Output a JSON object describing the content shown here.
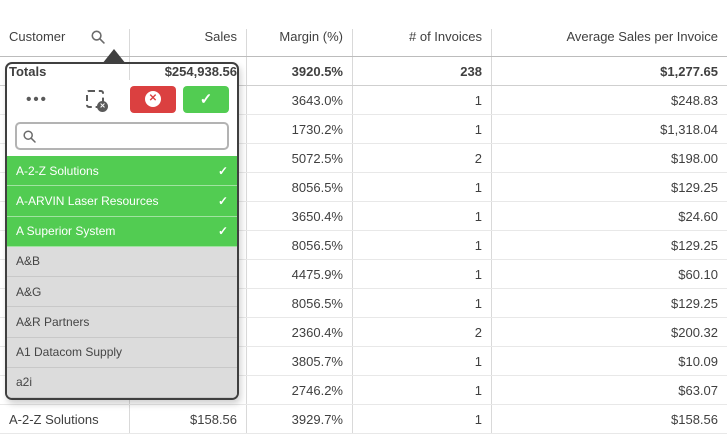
{
  "header": {
    "columns": [
      {
        "label": "Customer"
      },
      {
        "label": "Sales"
      },
      {
        "label": "Margin (%)"
      },
      {
        "label": "# of Invoices"
      },
      {
        "label": "Average Sales per Invoice"
      }
    ]
  },
  "table": {
    "rows": [
      {
        "customer": "Totals",
        "sales": "$254,938.56",
        "margin": "3920.5%",
        "invoices": "238",
        "avg": "$1,277.65",
        "totals": true
      },
      {
        "customer": "",
        "sales": "",
        "margin": "3643.0%",
        "invoices": "1",
        "avg": "$248.83"
      },
      {
        "customer": "",
        "sales": "",
        "margin": "1730.2%",
        "invoices": "1",
        "avg": "$1,318.04"
      },
      {
        "customer": "",
        "sales": "",
        "margin": "5072.5%",
        "invoices": "2",
        "avg": "$198.00"
      },
      {
        "customer": "",
        "sales": "",
        "margin": "8056.5%",
        "invoices": "1",
        "avg": "$129.25"
      },
      {
        "customer": "",
        "sales": "",
        "margin": "3650.4%",
        "invoices": "1",
        "avg": "$24.60"
      },
      {
        "customer": "",
        "sales": "",
        "margin": "8056.5%",
        "invoices": "1",
        "avg": "$129.25"
      },
      {
        "customer": "",
        "sales": "",
        "margin": "4475.9%",
        "invoices": "1",
        "avg": "$60.10"
      },
      {
        "customer": "",
        "sales": "",
        "margin": "8056.5%",
        "invoices": "1",
        "avg": "$129.25"
      },
      {
        "customer": "",
        "sales": "",
        "margin": "2360.4%",
        "invoices": "2",
        "avg": "$200.32"
      },
      {
        "customer": "",
        "sales": "",
        "margin": "3805.7%",
        "invoices": "1",
        "avg": "$10.09"
      },
      {
        "customer": "",
        "sales": "",
        "margin": "2746.2%",
        "invoices": "1",
        "avg": "$63.07"
      },
      {
        "customer": "A-2-Z Solutions",
        "sales": "$158.56",
        "margin": "3929.7%",
        "invoices": "1",
        "avg": "$158.56"
      }
    ]
  },
  "popup": {
    "toolbar": {
      "more_glyph": "•••",
      "cancel_glyph": "✕",
      "confirm_glyph": "✓",
      "lasso_x_glyph": "✕"
    },
    "search": {
      "placeholder": "",
      "value": ""
    },
    "check_glyph": "✓",
    "items": [
      {
        "label": "A-2-Z Solutions",
        "selected": true
      },
      {
        "label": "A-ARVIN Laser Resources",
        "selected": true
      },
      {
        "label": "A Superior System",
        "selected": true
      },
      {
        "label": "A&B",
        "selected": false
      },
      {
        "label": "A&G",
        "selected": false
      },
      {
        "label": "A&R Partners",
        "selected": false
      },
      {
        "label": "A1 Datacom Supply",
        "selected": false
      },
      {
        "label": "a2i",
        "selected": false
      }
    ]
  },
  "colors": {
    "selected_green": "#52CC52",
    "confirm_green": "#52CC52",
    "cancel_red": "#DB4040",
    "popup_border": "#3F3F3F"
  }
}
